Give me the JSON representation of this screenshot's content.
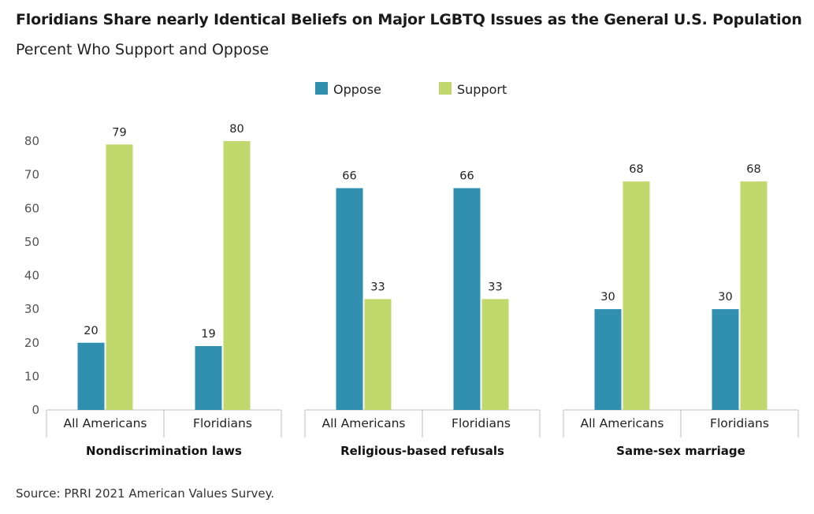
{
  "title": "Floridians Share nearly Identical Beliefs on Major LGBTQ Issues as the General U.S. Population",
  "subtitle": "Percent Who Support and Oppose",
  "source": "Source: PRRI 2021 American Values Survey.",
  "chart_data": {
    "type": "bar",
    "legend_position": "top-center",
    "grid": false,
    "ylim": [
      0,
      80
    ],
    "y_ticks": [
      0,
      10,
      20,
      30,
      40,
      50,
      60,
      70,
      80
    ],
    "y_tick_labels": [
      "0",
      "10",
      "20",
      "30",
      "40",
      "50",
      "60",
      "70",
      "80"
    ],
    "groups": [
      "Nondiscrimination laws",
      "Religious-based refusals",
      "Same-sex marriage"
    ],
    "categories": [
      "All Americans",
      "Floridians"
    ],
    "series": [
      {
        "name": "Oppose",
        "color": "#3190b0",
        "values": [
          [
            20,
            19
          ],
          [
            66,
            66
          ],
          [
            30,
            30
          ]
        ]
      },
      {
        "name": "Support",
        "color": "#c1d96c",
        "values": [
          [
            79,
            80
          ],
          [
            33,
            33
          ],
          [
            68,
            68
          ]
        ]
      }
    ]
  }
}
